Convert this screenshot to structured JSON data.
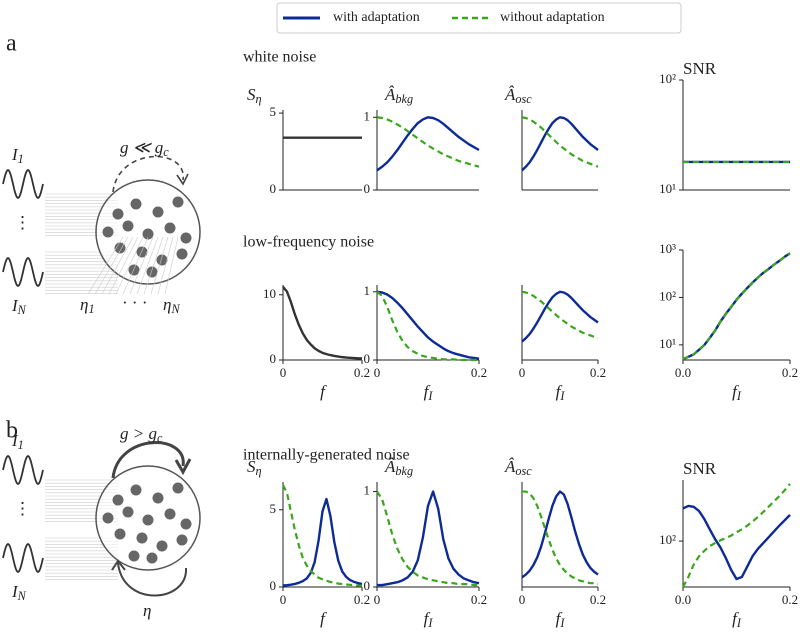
{
  "figure": {
    "panel_labels": [
      "a",
      "b"
    ],
    "row_titles": [
      "white noise",
      "low-frequency noise",
      "internally-generated noise"
    ],
    "diagram_a": {
      "inputs": [
        {
          "main": "I",
          "sub": "1"
        },
        {
          "main": "I",
          "sub": "N"
        }
      ],
      "vdots": "⋮",
      "coupling": {
        "main": "g ≪ g",
        "sub": "c"
      },
      "noise": [
        {
          "main": "η",
          "sub": "1"
        },
        {
          "main": "η",
          "sub": "N"
        }
      ],
      "ellipsis": "· · ·"
    },
    "diagram_b": {
      "inputs": [
        {
          "main": "I",
          "sub": "1"
        },
        {
          "main": "I",
          "sub": "N"
        }
      ],
      "vdots": "⋮",
      "coupling": {
        "main": "g > g",
        "sub": "c"
      },
      "noise": "η"
    }
  },
  "chart_data": [
    {
      "type": "line",
      "title": {
        "main": "S",
        "sub": "η"
      },
      "ylim": [
        0,
        5.2
      ],
      "yticks": [
        0,
        5
      ],
      "x": [
        0,
        0.01,
        0.02,
        0.03,
        0.04,
        0.05,
        0.06,
        0.07,
        0.08,
        0.09,
        0.1,
        0.11,
        0.12,
        0.13,
        0.14,
        0.15,
        0.16,
        0.17,
        0.18,
        0.19,
        0.2
      ],
      "series": [
        {
          "color": "#333333",
          "values": [
            3.4,
            3.4,
            3.4,
            3.4,
            3.4,
            3.4,
            3.4,
            3.4,
            3.4,
            3.4,
            3.4,
            3.4,
            3.4,
            3.4,
            3.4,
            3.4,
            3.4,
            3.4,
            3.4,
            3.4,
            3.4
          ]
        }
      ]
    },
    {
      "type": "line",
      "title": {
        "main": "Â",
        "sub": "bkg"
      },
      "ylim": [
        0,
        1.1
      ],
      "yticks": [
        0,
        1
      ],
      "x": [
        0,
        0.01,
        0.02,
        0.03,
        0.04,
        0.05,
        0.06,
        0.07,
        0.08,
        0.09,
        0.1,
        0.11,
        0.12,
        0.13,
        0.14,
        0.15,
        0.16,
        0.17,
        0.18,
        0.19,
        0.2
      ],
      "series": [
        {
          "name": "with adaptation",
          "color": "#0d2b95",
          "values": [
            0.27,
            0.32,
            0.38,
            0.46,
            0.55,
            0.65,
            0.75,
            0.84,
            0.92,
            0.97,
            1.0,
            0.99,
            0.96,
            0.91,
            0.85,
            0.79,
            0.73,
            0.68,
            0.63,
            0.59,
            0.55
          ]
        },
        {
          "name": "without adaptation",
          "color": "#3aa61c",
          "dash": true,
          "values": [
            1.0,
            0.99,
            0.97,
            0.94,
            0.9,
            0.86,
            0.81,
            0.76,
            0.71,
            0.66,
            0.61,
            0.57,
            0.53,
            0.49,
            0.46,
            0.43,
            0.4,
            0.38,
            0.36,
            0.34,
            0.32
          ]
        }
      ]
    },
    {
      "type": "line",
      "title": {
        "main": "Â",
        "sub": "osc"
      },
      "ylim": [
        0,
        1.1
      ],
      "x": [
        0,
        0.01,
        0.02,
        0.03,
        0.04,
        0.05,
        0.06,
        0.07,
        0.08,
        0.09,
        0.1,
        0.11,
        0.12,
        0.13,
        0.14,
        0.15,
        0.16,
        0.17,
        0.18,
        0.19,
        0.2
      ],
      "series": [
        {
          "color": "#0d2b95",
          "values": [
            0.27,
            0.32,
            0.38,
            0.46,
            0.55,
            0.65,
            0.75,
            0.84,
            0.92,
            0.97,
            1.0,
            0.99,
            0.96,
            0.91,
            0.85,
            0.79,
            0.73,
            0.68,
            0.63,
            0.59,
            0.55
          ]
        },
        {
          "color": "#3aa61c",
          "dash": true,
          "values": [
            1.0,
            0.99,
            0.97,
            0.94,
            0.9,
            0.86,
            0.81,
            0.76,
            0.71,
            0.66,
            0.61,
            0.57,
            0.53,
            0.49,
            0.46,
            0.43,
            0.4,
            0.38,
            0.36,
            0.34,
            0.32
          ]
        }
      ]
    },
    {
      "type": "line",
      "title": "SNR",
      "log": true,
      "ylim": [
        10,
        100
      ],
      "yticks": [
        {
          "value": 10,
          "label": "10¹"
        },
        {
          "value": 100,
          "label": "10²"
        }
      ],
      "x": [
        0,
        0.01,
        0.02,
        0.03,
        0.04,
        0.05,
        0.06,
        0.07,
        0.08,
        0.09,
        0.1,
        0.11,
        0.12,
        0.13,
        0.14,
        0.15,
        0.16,
        0.17,
        0.18,
        0.19,
        0.2
      ],
      "series": [
        {
          "color": "#0d2b95",
          "values": [
            18,
            18,
            18,
            18,
            18,
            18,
            18,
            18,
            18,
            18,
            18,
            18,
            18,
            18,
            18,
            18,
            18,
            18,
            18,
            18,
            18
          ]
        },
        {
          "color": "#3aa61c",
          "dash": true,
          "values": [
            18,
            18,
            18,
            18,
            18,
            18,
            18,
            18,
            18,
            18,
            18,
            18,
            18,
            18,
            18,
            18,
            18,
            18,
            18,
            18,
            18
          ]
        }
      ]
    },
    {
      "type": "line",
      "ylim": [
        0,
        11.5
      ],
      "yticks": [
        0,
        10
      ],
      "xlim": [
        0,
        0.2
      ],
      "xticks": [
        0,
        0.2
      ],
      "xlabel": "f",
      "x": [
        0,
        0.01,
        0.02,
        0.03,
        0.04,
        0.05,
        0.06,
        0.07,
        0.08,
        0.09,
        0.1,
        0.11,
        0.12,
        0.13,
        0.14,
        0.15,
        0.16,
        0.17,
        0.18,
        0.19,
        0.2
      ],
      "series": [
        {
          "color": "#333333",
          "values": [
            11.2,
            10.5,
            8.9,
            7.0,
            5.4,
            4.1,
            3.1,
            2.4,
            1.8,
            1.4,
            1.1,
            0.9,
            0.75,
            0.62,
            0.52,
            0.44,
            0.38,
            0.33,
            0.29,
            0.26,
            0.23
          ]
        }
      ]
    },
    {
      "type": "line",
      "ylim": [
        0,
        1.1
      ],
      "yticks": [
        0,
        1
      ],
      "xlim": [
        0,
        0.2
      ],
      "xticks": [
        0,
        0.2
      ],
      "xlabel": {
        "main": "f",
        "sub": "I"
      },
      "x": [
        0,
        0.01,
        0.02,
        0.03,
        0.04,
        0.05,
        0.06,
        0.07,
        0.08,
        0.09,
        0.1,
        0.11,
        0.12,
        0.13,
        0.14,
        0.15,
        0.16,
        0.17,
        0.18,
        0.19,
        0.2
      ],
      "series": [
        {
          "color": "#0d2b95",
          "values": [
            1.0,
            0.99,
            0.96,
            0.91,
            0.84,
            0.76,
            0.67,
            0.58,
            0.49,
            0.41,
            0.33,
            0.27,
            0.22,
            0.17,
            0.13,
            0.1,
            0.08,
            0.06,
            0.04,
            0.03,
            0.02
          ]
        },
        {
          "color": "#3aa61c",
          "dash": true,
          "values": [
            1.0,
            0.94,
            0.78,
            0.58,
            0.41,
            0.28,
            0.19,
            0.13,
            0.09,
            0.06,
            0.04,
            0.03,
            0.02,
            0.01,
            0.01,
            0.01,
            0,
            0,
            0,
            0,
            0
          ]
        }
      ]
    },
    {
      "type": "line",
      "ylim": [
        0,
        1.1
      ],
      "xlim": [
        0,
        0.2
      ],
      "xticks": [
        0,
        0.2
      ],
      "xlabel": {
        "main": "f",
        "sub": "I"
      },
      "x": [
        0,
        0.01,
        0.02,
        0.03,
        0.04,
        0.05,
        0.06,
        0.07,
        0.08,
        0.09,
        0.1,
        0.11,
        0.12,
        0.13,
        0.14,
        0.15,
        0.16,
        0.17,
        0.18,
        0.19,
        0.2
      ],
      "series": [
        {
          "color": "#0d2b95",
          "values": [
            0.27,
            0.32,
            0.38,
            0.46,
            0.55,
            0.65,
            0.75,
            0.84,
            0.92,
            0.97,
            1.0,
            0.99,
            0.96,
            0.91,
            0.85,
            0.79,
            0.73,
            0.68,
            0.63,
            0.59,
            0.55
          ]
        },
        {
          "color": "#3aa61c",
          "dash": true,
          "values": [
            1.0,
            0.99,
            0.97,
            0.94,
            0.9,
            0.86,
            0.81,
            0.76,
            0.71,
            0.66,
            0.61,
            0.57,
            0.53,
            0.49,
            0.46,
            0.43,
            0.4,
            0.38,
            0.36,
            0.34,
            0.32
          ]
        }
      ]
    },
    {
      "type": "line",
      "log": true,
      "ylim": [
        4.8,
        1000
      ],
      "yticks": [
        {
          "value": 10,
          "label": "10¹"
        },
        {
          "value": 100,
          "label": "10²"
        },
        {
          "value": 1000,
          "label": "10³"
        }
      ],
      "xlim": [
        0,
        0.2
      ],
      "xticks": [
        {
          "value": 0,
          "label": "0.0"
        },
        0.2
      ],
      "xlabel": {
        "main": "f",
        "sub": "I"
      },
      "x": [
        0,
        0.01,
        0.02,
        0.03,
        0.04,
        0.05,
        0.06,
        0.07,
        0.08,
        0.09,
        0.1,
        0.11,
        0.12,
        0.13,
        0.14,
        0.15,
        0.16,
        0.17,
        0.18,
        0.19,
        0.2
      ],
      "series": [
        {
          "color": "#0d2b95",
          "values": [
            5,
            5.6,
            6.3,
            7.9,
            10,
            14,
            20,
            31,
            45,
            63,
            89,
            120,
            158,
            205,
            263,
            330,
            398,
            490,
            589,
            720,
            851
          ]
        },
        {
          "color": "#3aa61c",
          "dash": true,
          "values": [
            5,
            5.6,
            6.3,
            7.9,
            10,
            14,
            20,
            31,
            45,
            63,
            89,
            120,
            158,
            205,
            263,
            330,
            398,
            490,
            589,
            720,
            851
          ]
        }
      ]
    },
    {
      "type": "line",
      "title": {
        "main": "S",
        "sub": "η"
      },
      "ylim": [
        0,
        6.8
      ],
      "yticks": [
        0,
        5
      ],
      "xlim": [
        0,
        0.2
      ],
      "xticks": [
        0,
        0.2
      ],
      "xlabel": "f",
      "x": [
        0,
        0.01,
        0.02,
        0.03,
        0.04,
        0.05,
        0.06,
        0.07,
        0.08,
        0.09,
        0.1,
        0.11,
        0.12,
        0.13,
        0.14,
        0.15,
        0.16,
        0.17,
        0.18,
        0.19,
        0.2
      ],
      "series": [
        {
          "color": "#0d2b95",
          "values": [
            0.1,
            0.12,
            0.15,
            0.2,
            0.27,
            0.38,
            0.55,
            0.9,
            1.6,
            3.0,
            4.9,
            5.7,
            4.6,
            2.9,
            1.7,
            1.0,
            0.65,
            0.45,
            0.33,
            0.25,
            0.2
          ]
        },
        {
          "color": "#3aa61c",
          "dash": true,
          "values": [
            6.6,
            6.1,
            4.9,
            3.7,
            2.7,
            1.9,
            1.4,
            1.05,
            0.8,
            0.6,
            0.5,
            0.4,
            0.33,
            0.27,
            0.22,
            0.19,
            0.16,
            0.14,
            0.12,
            0.1,
            0.09
          ]
        }
      ]
    },
    {
      "type": "line",
      "title": {
        "main": "Â",
        "sub": "bkg"
      },
      "ylim": [
        0,
        1.1
      ],
      "yticks": [
        0,
        1
      ],
      "xlim": [
        0,
        0.2
      ],
      "xticks": [
        0,
        0.2
      ],
      "xlabel": {
        "main": "f",
        "sub": "I"
      },
      "x": [
        0,
        0.01,
        0.02,
        0.03,
        0.04,
        0.05,
        0.06,
        0.07,
        0.08,
        0.09,
        0.1,
        0.11,
        0.12,
        0.13,
        0.14,
        0.15,
        0.16,
        0.17,
        0.18,
        0.19,
        0.2
      ],
      "series": [
        {
          "color": "#0d2b95",
          "values": [
            0.02,
            0.02,
            0.03,
            0.04,
            0.05,
            0.07,
            0.1,
            0.16,
            0.28,
            0.52,
            0.85,
            1.0,
            0.82,
            0.5,
            0.3,
            0.19,
            0.13,
            0.09,
            0.07,
            0.05,
            0.04
          ]
        },
        {
          "color": "#3aa61c",
          "dash": true,
          "values": [
            1.0,
            0.92,
            0.74,
            0.55,
            0.4,
            0.29,
            0.21,
            0.16,
            0.12,
            0.1,
            0.08,
            0.07,
            0.06,
            0.05,
            0.04,
            0.04,
            0.03,
            0.03,
            0.03,
            0.02,
            0.02
          ]
        }
      ]
    },
    {
      "type": "line",
      "title": {
        "main": "Â",
        "sub": "osc"
      },
      "ylim": [
        0,
        1.1
      ],
      "xlim": [
        0,
        0.2
      ],
      "xticks": [
        0,
        0.2
      ],
      "xlabel": {
        "main": "f",
        "sub": "I"
      },
      "x": [
        0,
        0.01,
        0.02,
        0.03,
        0.04,
        0.05,
        0.06,
        0.07,
        0.08,
        0.09,
        0.1,
        0.11,
        0.12,
        0.13,
        0.14,
        0.15,
        0.16,
        0.17,
        0.18,
        0.19,
        0.2
      ],
      "series": [
        {
          "color": "#0d2b95",
          "values": [
            0.1,
            0.13,
            0.17,
            0.23,
            0.31,
            0.42,
            0.56,
            0.71,
            0.85,
            0.95,
            1.0,
            0.97,
            0.87,
            0.73,
            0.58,
            0.45,
            0.34,
            0.26,
            0.2,
            0.16,
            0.13
          ]
        },
        {
          "color": "#3aa61c",
          "dash": true,
          "values": [
            1.0,
            1.0,
            0.98,
            0.93,
            0.85,
            0.74,
            0.62,
            0.5,
            0.39,
            0.3,
            0.23,
            0.18,
            0.14,
            0.11,
            0.09,
            0.07,
            0.06,
            0.05,
            0.04,
            0.04,
            0.03
          ]
        }
      ]
    },
    {
      "type": "line",
      "title": "SNR",
      "log": true,
      "ylim": [
        31,
        475
      ],
      "yticks": [
        {
          "value": 100,
          "label": "10²"
        }
      ],
      "xlim": [
        0,
        0.2
      ],
      "xticks": [
        {
          "value": 0,
          "label": "0.0"
        },
        0.2
      ],
      "xlabel": {
        "main": "f",
        "sub": "I"
      },
      "x": [
        0,
        0.01,
        0.02,
        0.03,
        0.04,
        0.05,
        0.06,
        0.07,
        0.08,
        0.09,
        0.1,
        0.11,
        0.12,
        0.13,
        0.14,
        0.15,
        0.16,
        0.17,
        0.18,
        0.19,
        0.2
      ],
      "series": [
        {
          "color": "#0d2b95",
          "values": [
            230,
            245,
            240,
            215,
            175,
            135,
            105,
            85,
            65,
            48,
            38,
            40,
            52,
            68,
            82,
            95,
            110,
            128,
            148,
            170,
            195
          ]
        },
        {
          "color": "#3aa61c",
          "dash": true,
          "values": [
            31,
            40,
            55,
            68,
            78,
            88,
            95,
            102,
            108,
            115,
            125,
            135,
            148,
            165,
            185,
            210,
            240,
            275,
            315,
            365,
            430
          ]
        }
      ]
    }
  ]
}
